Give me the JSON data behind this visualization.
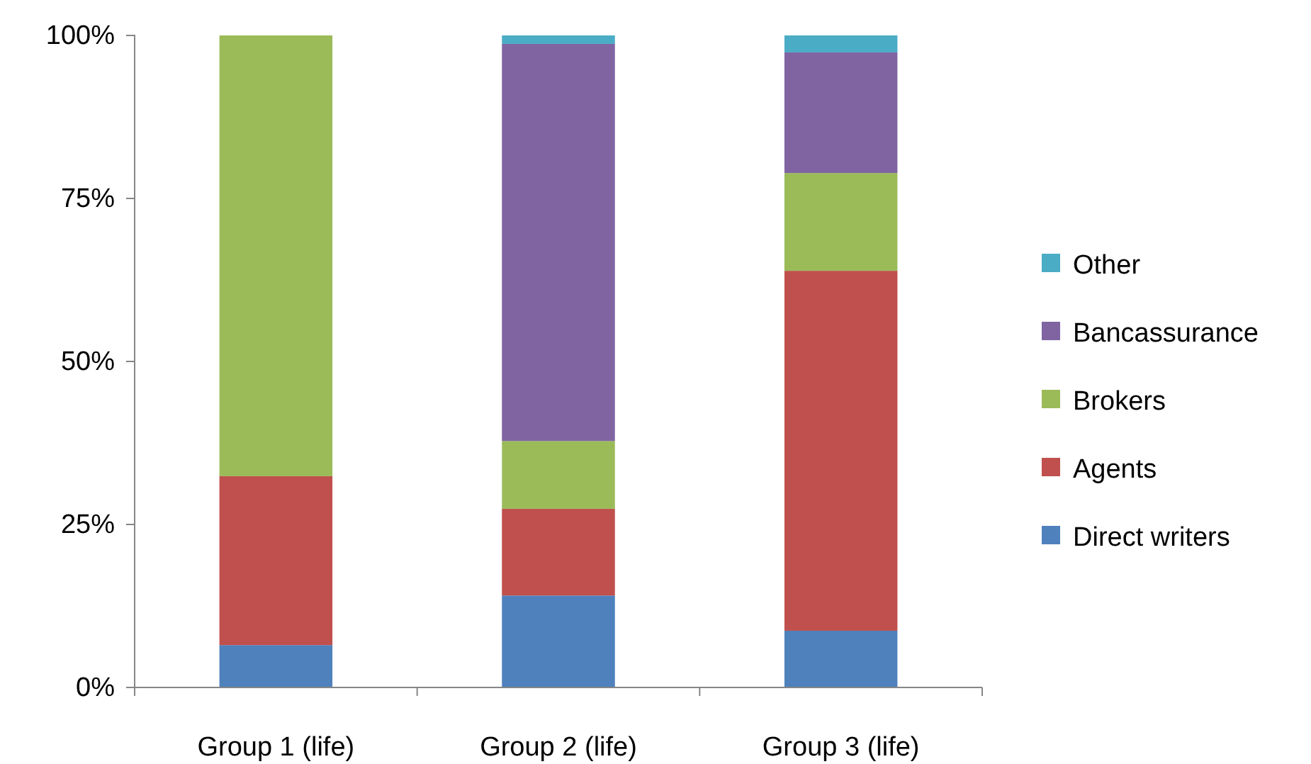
{
  "chart_data": {
    "type": "bar",
    "stacked": true,
    "categories": [
      "Group 1 (life)",
      "Group 2 (life)",
      "Group 3 (life)"
    ],
    "series": [
      {
        "name": "Direct writers",
        "color": "#4f81bd",
        "values": [
          6.5,
          14.1,
          8.7
        ]
      },
      {
        "name": "Agents",
        "color": "#c0504d",
        "values": [
          25.9,
          13.3,
          55.2
        ]
      },
      {
        "name": "Brokers",
        "color": "#9bbb59",
        "values": [
          67.6,
          10.4,
          15.0
        ]
      },
      {
        "name": "Bancassurance",
        "color": "#8064a2",
        "values": [
          0,
          60.9,
          18.5
        ]
      },
      {
        "name": "Other",
        "color": "#4bacc6",
        "values": [
          0,
          1.3,
          2.6
        ]
      }
    ],
    "ylim": [
      0,
      100
    ],
    "yticks": [
      {
        "value": 0,
        "label": "0%"
      },
      {
        "value": 25,
        "label": "25%"
      },
      {
        "value": 50,
        "label": "50%"
      },
      {
        "value": 75,
        "label": "75%"
      },
      {
        "value": 100,
        "label": "100%"
      }
    ],
    "grid": false,
    "legend": "right"
  }
}
